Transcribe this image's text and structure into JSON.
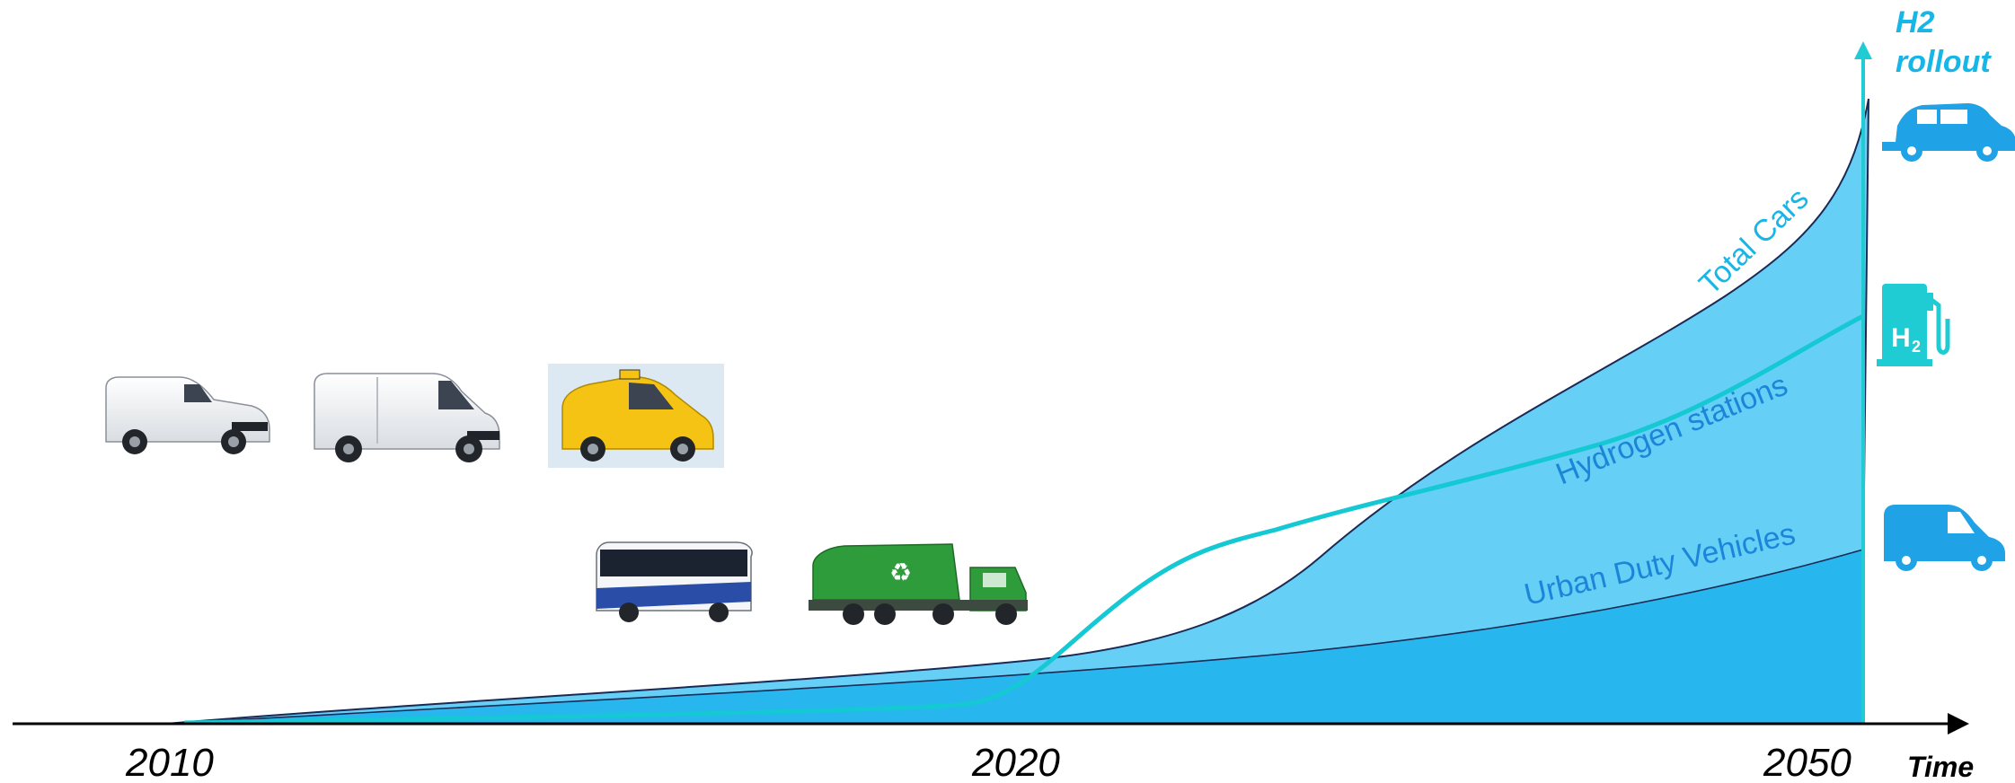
{
  "axis": {
    "y_title_line1": "H2",
    "y_title_line2": "rollout",
    "x_title": "Time",
    "ticks": [
      "2010",
      "2020",
      "2050"
    ]
  },
  "curves": {
    "total_cars": "Total Cars",
    "hydrogen_stations": "Hydrogen stations",
    "urban_duty": "Urban Duty Vehicles"
  },
  "icons": {
    "car": "car-icon",
    "station": "hydrogen-pump-icon",
    "van": "van-icon",
    "station_symbol": "H",
    "station_subscript": "2"
  },
  "vehicles": [
    "small-van",
    "large-van",
    "taxi",
    "bus",
    "garbage-truck"
  ],
  "colors": {
    "total_cars_fill": "#66CFF5",
    "urban_fill": "#28B6EE",
    "hydrogen_line": "#14C8D4",
    "axis": "#000000",
    "arrow": "#20CCD4",
    "label_blue": "#1B86D9",
    "label_cyan": "#18B6E6",
    "taxi_yellow": "#F5C313",
    "truck_green": "#2E9C3A"
  }
}
